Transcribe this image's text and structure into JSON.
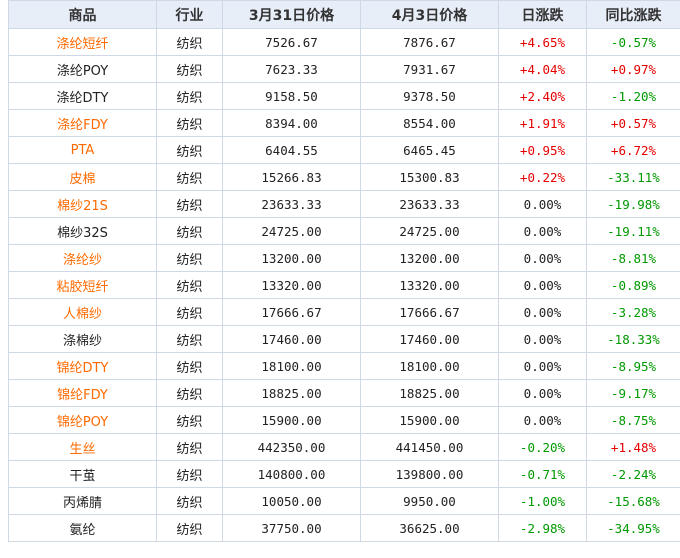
{
  "headers": [
    "商品",
    "行业",
    "3月31日价格",
    "4月3日价格",
    "日涨跌",
    "同比涨跌"
  ],
  "colors": {
    "link": "#ff6a00",
    "up": "#e50000",
    "down": "#009900",
    "header_bg": "#e7eef8"
  },
  "rows": [
    {
      "name": "涤纶短纤",
      "link": true,
      "industry": "纺织",
      "price1": "7526.67",
      "price2": "7876.67",
      "day": "+4.65%",
      "day_dir": "pos",
      "yoy": "-0.57%",
      "yoy_dir": "neg"
    },
    {
      "name": "涤纶POY",
      "link": false,
      "industry": "纺织",
      "price1": "7623.33",
      "price2": "7931.67",
      "day": "+4.04%",
      "day_dir": "pos",
      "yoy": "+0.97%",
      "yoy_dir": "pos"
    },
    {
      "name": "涤纶DTY",
      "link": false,
      "industry": "纺织",
      "price1": "9158.50",
      "price2": "9378.50",
      "day": "+2.40%",
      "day_dir": "pos",
      "yoy": "-1.20%",
      "yoy_dir": "neg"
    },
    {
      "name": "涤纶FDY",
      "link": true,
      "industry": "纺织",
      "price1": "8394.00",
      "price2": "8554.00",
      "day": "+1.91%",
      "day_dir": "pos",
      "yoy": "+0.57%",
      "yoy_dir": "pos"
    },
    {
      "name": "PTA",
      "link": true,
      "industry": "纺织",
      "price1": "6404.55",
      "price2": "6465.45",
      "day": "+0.95%",
      "day_dir": "pos",
      "yoy": "+6.72%",
      "yoy_dir": "pos"
    },
    {
      "name": "皮棉",
      "link": true,
      "industry": "纺织",
      "price1": "15266.83",
      "price2": "15300.83",
      "day": "+0.22%",
      "day_dir": "pos",
      "yoy": "-33.11%",
      "yoy_dir": "neg"
    },
    {
      "name": "棉纱21S",
      "link": true,
      "industry": "纺织",
      "price1": "23633.33",
      "price2": "23633.33",
      "day": "0.00%",
      "day_dir": "zero",
      "yoy": "-19.98%",
      "yoy_dir": "neg"
    },
    {
      "name": "棉纱32S",
      "link": false,
      "industry": "纺织",
      "price1": "24725.00",
      "price2": "24725.00",
      "day": "0.00%",
      "day_dir": "zero",
      "yoy": "-19.11%",
      "yoy_dir": "neg"
    },
    {
      "name": "涤纶纱",
      "link": true,
      "industry": "纺织",
      "price1": "13200.00",
      "price2": "13200.00",
      "day": "0.00%",
      "day_dir": "zero",
      "yoy": "-8.81%",
      "yoy_dir": "neg"
    },
    {
      "name": "粘胶短纤",
      "link": true,
      "industry": "纺织",
      "price1": "13320.00",
      "price2": "13320.00",
      "day": "0.00%",
      "day_dir": "zero",
      "yoy": "-0.89%",
      "yoy_dir": "neg"
    },
    {
      "name": "人棉纱",
      "link": true,
      "industry": "纺织",
      "price1": "17666.67",
      "price2": "17666.67",
      "day": "0.00%",
      "day_dir": "zero",
      "yoy": "-3.28%",
      "yoy_dir": "neg"
    },
    {
      "name": "涤棉纱",
      "link": false,
      "industry": "纺织",
      "price1": "17460.00",
      "price2": "17460.00",
      "day": "0.00%",
      "day_dir": "zero",
      "yoy": "-18.33%",
      "yoy_dir": "neg"
    },
    {
      "name": "锦纶DTY",
      "link": true,
      "industry": "纺织",
      "price1": "18100.00",
      "price2": "18100.00",
      "day": "0.00%",
      "day_dir": "zero",
      "yoy": "-8.95%",
      "yoy_dir": "neg"
    },
    {
      "name": "锦纶FDY",
      "link": true,
      "industry": "纺织",
      "price1": "18825.00",
      "price2": "18825.00",
      "day": "0.00%",
      "day_dir": "zero",
      "yoy": "-9.17%",
      "yoy_dir": "neg"
    },
    {
      "name": "锦纶POY",
      "link": true,
      "industry": "纺织",
      "price1": "15900.00",
      "price2": "15900.00",
      "day": "0.00%",
      "day_dir": "zero",
      "yoy": "-8.75%",
      "yoy_dir": "neg"
    },
    {
      "name": "生丝",
      "link": true,
      "industry": "纺织",
      "price1": "442350.00",
      "price2": "441450.00",
      "day": "-0.20%",
      "day_dir": "neg",
      "yoy": "+1.48%",
      "yoy_dir": "pos"
    },
    {
      "name": "干茧",
      "link": false,
      "industry": "纺织",
      "price1": "140800.00",
      "price2": "139800.00",
      "day": "-0.71%",
      "day_dir": "neg",
      "yoy": "-2.24%",
      "yoy_dir": "neg"
    },
    {
      "name": "丙烯腈",
      "link": false,
      "industry": "纺织",
      "price1": "10050.00",
      "price2": "9950.00",
      "day": "-1.00%",
      "day_dir": "neg",
      "yoy": "-15.68%",
      "yoy_dir": "neg"
    },
    {
      "name": "氨纶",
      "link": false,
      "industry": "纺织",
      "price1": "37750.00",
      "price2": "36625.00",
      "day": "-2.98%",
      "day_dir": "neg",
      "yoy": "-34.95%",
      "yoy_dir": "neg"
    }
  ]
}
